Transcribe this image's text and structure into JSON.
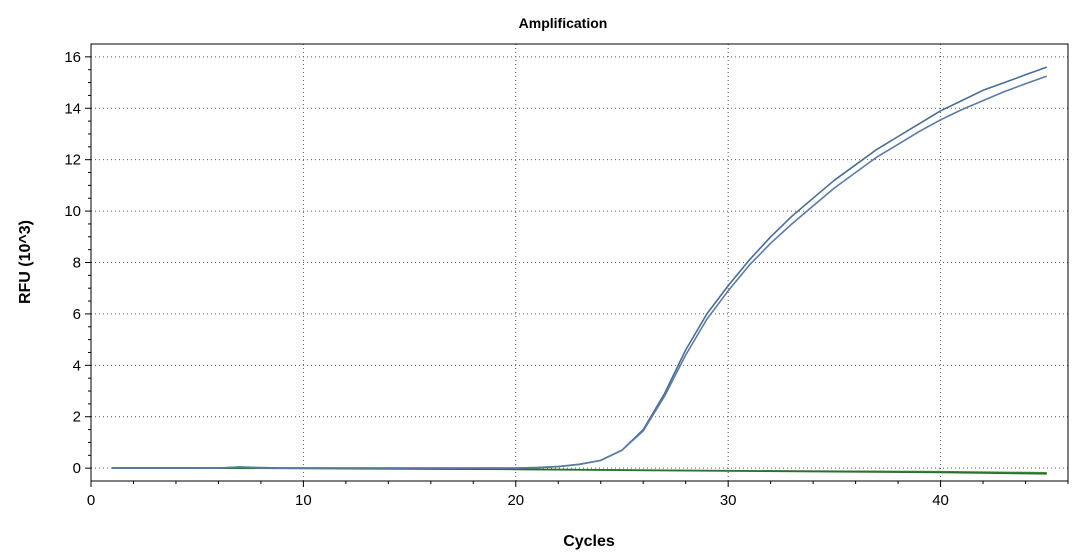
{
  "chart_data": {
    "type": "line",
    "title": "Amplification",
    "xlabel": "Cycles",
    "ylabel": "RFU (10^3)",
    "xlim": [
      0,
      46
    ],
    "ylim": [
      -0.5,
      16.5
    ],
    "x_ticks": [
      0,
      10,
      20,
      30,
      40
    ],
    "x_tick_labels": [
      "0",
      "10",
      "20",
      "30",
      "40"
    ],
    "y_ticks": [
      0,
      2,
      4,
      6,
      8,
      10,
      12,
      14,
      16
    ],
    "y_tick_labels": [
      "0",
      "2",
      "4",
      "6",
      "8",
      "10",
      "12",
      "14",
      "16"
    ],
    "grid": true,
    "legend": "none",
    "series": [
      {
        "color": "#4a6d94",
        "x": [
          1,
          2,
          3,
          4,
          5,
          6,
          7,
          8,
          9,
          10,
          11,
          12,
          13,
          14,
          15,
          16,
          17,
          18,
          19,
          20,
          21,
          22,
          23,
          24,
          25,
          26,
          27,
          28,
          29,
          30,
          31,
          32,
          33,
          34,
          35,
          36,
          37,
          38,
          39,
          40,
          41,
          42,
          43,
          44,
          45
        ],
        "y": [
          0,
          0,
          0,
          0,
          0,
          0,
          0.05,
          0.02,
          0,
          0,
          0,
          0,
          0,
          0,
          0,
          0,
          0,
          0,
          0,
          0,
          0.02,
          0.06,
          0.15,
          0.3,
          0.7,
          1.5,
          2.9,
          4.6,
          6.0,
          7.1,
          8.1,
          9.0,
          9.8,
          10.5,
          11.2,
          11.8,
          12.4,
          12.9,
          13.4,
          13.9,
          14.3,
          14.7,
          15.0,
          15.3,
          15.6
        ]
      },
      {
        "color": "#5b7ba3",
        "x": [
          1,
          2,
          3,
          4,
          5,
          6,
          7,
          8,
          9,
          10,
          11,
          12,
          13,
          14,
          15,
          16,
          17,
          18,
          19,
          20,
          21,
          22,
          23,
          24,
          25,
          26,
          27,
          28,
          29,
          30,
          31,
          32,
          33,
          34,
          35,
          36,
          37,
          38,
          39,
          40,
          41,
          42,
          43,
          44,
          45
        ],
        "y": [
          0,
          0,
          0,
          0,
          0,
          0,
          0.04,
          0.01,
          0,
          0,
          0,
          0,
          0,
          0,
          0,
          0,
          0,
          0,
          0,
          0,
          0.02,
          0.06,
          0.15,
          0.3,
          0.7,
          1.45,
          2.8,
          4.4,
          5.8,
          6.9,
          7.9,
          8.75,
          9.5,
          10.2,
          10.9,
          11.5,
          12.1,
          12.6,
          13.1,
          13.55,
          13.95,
          14.3,
          14.65,
          14.95,
          15.25
        ]
      },
      {
        "color": "#3c8a3c",
        "x": [
          1,
          5,
          10,
          15,
          20,
          25,
          30,
          35,
          40,
          45
        ],
        "y": [
          0,
          0,
          0,
          -0.02,
          -0.04,
          -0.07,
          -0.1,
          -0.12,
          -0.14,
          -0.18
        ]
      },
      {
        "color": "#2e6e2e",
        "x": [
          1,
          5,
          10,
          15,
          20,
          25,
          30,
          35,
          40,
          45
        ],
        "y": [
          0,
          0,
          -0.01,
          -0.03,
          -0.05,
          -0.08,
          -0.11,
          -0.14,
          -0.17,
          -0.22
        ]
      }
    ]
  }
}
